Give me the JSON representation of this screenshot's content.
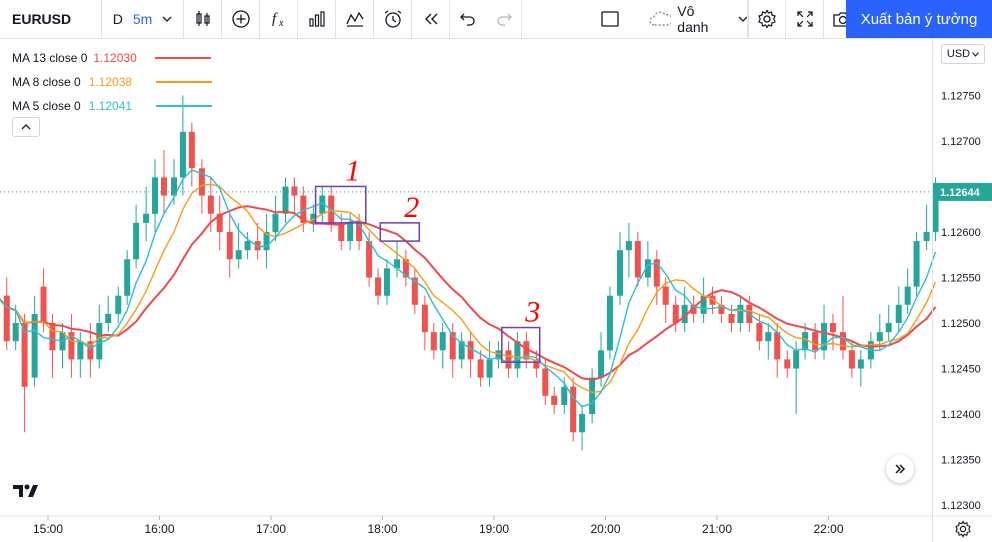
{
  "toolbar": {
    "symbol": "EURUSD",
    "interval_day": "D",
    "interval_min": "5m",
    "icons": [
      "chevron-down-icon",
      "candles-icon",
      "add-circle-icon",
      "fx-icon",
      "templates-icon",
      "indicators-icon",
      "alert-icon",
      "replay-icon",
      "undo-icon",
      "redo-icon"
    ],
    "layout_name": "Vô danh",
    "publish_label": "Xuất bản ý tưởng"
  },
  "legend": [
    {
      "name": "MA 13 close 0",
      "value": "1.12030",
      "color": "#f04b4b"
    },
    {
      "name": "MA 8 close 0",
      "value": "1.12038",
      "color": "#f59d1a"
    },
    {
      "name": "MA 5 close 0",
      "value": "1.12041",
      "color": "#2ebfd0"
    }
  ],
  "currency": "USD",
  "colors": {
    "up": "#26a69a",
    "down": "#ef5350",
    "ma13": "#f04b4b",
    "ma8": "#f59d1a",
    "ma5": "#2ebfd0",
    "annotation_box": "#6b3fb8",
    "annotation_text": "#ff0000",
    "price_tag": "#26a69a"
  },
  "current_price": "1.12644",
  "chart_data": {
    "type": "candlestick",
    "x_ticks": [
      "15:00",
      "16:00",
      "17:00",
      "18:00",
      "19:00",
      "20:00",
      "21:00",
      "22:00"
    ],
    "y_ticks": [
      "1.12800",
      "1.12750",
      "1.12700",
      "1.12650",
      "1.12600",
      "1.12550",
      "1.12500",
      "1.12450",
      "1.12400",
      "1.12350",
      "1.12300"
    ],
    "y_range": [
      1.12288,
      1.12812
    ],
    "candles": [
      [
        14.38,
        1.125,
        1.1255,
        1.1256,
        1.1249
      ],
      [
        14.46,
        1.1254,
        1.125,
        1.1255,
        1.1248
      ],
      [
        14.54,
        1.125,
        1.1254,
        1.1255,
        1.1249
      ],
      [
        14.63,
        1.1253,
        1.1248,
        1.1255,
        1.1247
      ],
      [
        14.71,
        1.1248,
        1.125,
        1.1252,
        1.1247
      ],
      [
        14.79,
        1.125,
        1.1243,
        1.1251,
        1.1238
      ],
      [
        14.88,
        1.1244,
        1.1251,
        1.1253,
        1.1243
      ],
      [
        14.96,
        1.1254,
        1.125,
        1.1256,
        1.1249
      ],
      [
        15.04,
        1.125,
        1.1247,
        1.1251,
        1.1244
      ],
      [
        15.13,
        1.1247,
        1.1249,
        1.125,
        1.1245
      ],
      [
        15.21,
        1.1249,
        1.1246,
        1.1251,
        1.1244
      ],
      [
        15.29,
        1.1246,
        1.1248,
        1.1249,
        1.1244
      ],
      [
        15.38,
        1.1248,
        1.1246,
        1.125,
        1.1244
      ],
      [
        15.46,
        1.1246,
        1.125,
        1.1252,
        1.1245
      ],
      [
        15.54,
        1.125,
        1.1251,
        1.1253,
        1.1249
      ],
      [
        15.63,
        1.1251,
        1.1253,
        1.1254,
        1.125
      ],
      [
        15.71,
        1.1253,
        1.1257,
        1.1258,
        1.1252
      ],
      [
        15.79,
        1.1257,
        1.1261,
        1.1263,
        1.1256
      ],
      [
        15.88,
        1.1261,
        1.1262,
        1.1265,
        1.1259
      ],
      [
        15.96,
        1.1262,
        1.1266,
        1.1268,
        1.126
      ],
      [
        16.04,
        1.1266,
        1.1264,
        1.1269,
        1.1262
      ],
      [
        16.13,
        1.1264,
        1.1266,
        1.1268,
        1.1263
      ],
      [
        16.21,
        1.1266,
        1.1271,
        1.1275,
        1.1264
      ],
      [
        16.29,
        1.1271,
        1.1267,
        1.1272,
        1.1265
      ],
      [
        16.38,
        1.1267,
        1.1264,
        1.1268,
        1.1262
      ],
      [
        16.46,
        1.1264,
        1.1262,
        1.1266,
        1.126
      ],
      [
        16.54,
        1.1262,
        1.126,
        1.1264,
        1.1258
      ],
      [
        16.63,
        1.126,
        1.1257,
        1.1262,
        1.1255
      ],
      [
        16.71,
        1.1257,
        1.1258,
        1.1261,
        1.1256
      ],
      [
        16.79,
        1.1258,
        1.1259,
        1.126,
        1.1257
      ],
      [
        16.88,
        1.1259,
        1.1258,
        1.1261,
        1.1257
      ],
      [
        16.96,
        1.1258,
        1.126,
        1.1262,
        1.1256
      ],
      [
        17.04,
        1.126,
        1.1262,
        1.1264,
        1.1259
      ],
      [
        17.13,
        1.1262,
        1.1265,
        1.1266,
        1.1261
      ],
      [
        17.21,
        1.1265,
        1.1264,
        1.1266,
        1.1262
      ],
      [
        17.29,
        1.1264,
        1.1261,
        1.1265,
        1.126
      ],
      [
        17.38,
        1.1261,
        1.1262,
        1.1263,
        1.126
      ],
      [
        17.46,
        1.1262,
        1.1264,
        1.1265,
        1.1261
      ],
      [
        17.54,
        1.1264,
        1.1261,
        1.1265,
        1.126
      ],
      [
        17.63,
        1.1261,
        1.1259,
        1.1262,
        1.1258
      ],
      [
        17.71,
        1.1259,
        1.1261,
        1.1262,
        1.1258
      ],
      [
        17.79,
        1.1261,
        1.1259,
        1.1262,
        1.1258
      ],
      [
        17.88,
        1.1259,
        1.1255,
        1.126,
        1.1254
      ],
      [
        17.96,
        1.1255,
        1.1253,
        1.1256,
        1.1252
      ],
      [
        18.04,
        1.1253,
        1.1256,
        1.1257,
        1.1252
      ],
      [
        18.13,
        1.1256,
        1.1257,
        1.1259,
        1.1255
      ],
      [
        18.21,
        1.1257,
        1.1255,
        1.1258,
        1.1254
      ],
      [
        18.29,
        1.1255,
        1.1252,
        1.1256,
        1.1251
      ],
      [
        18.38,
        1.1252,
        1.1249,
        1.1253,
        1.1247
      ],
      [
        18.46,
        1.1249,
        1.1247,
        1.125,
        1.1246
      ],
      [
        18.54,
        1.1247,
        1.1249,
        1.125,
        1.1245
      ],
      [
        18.63,
        1.1249,
        1.1246,
        1.125,
        1.1244
      ],
      [
        18.71,
        1.1246,
        1.1248,
        1.1249,
        1.1245
      ],
      [
        18.79,
        1.1248,
        1.1246,
        1.1249,
        1.1244
      ],
      [
        18.88,
        1.1246,
        1.1244,
        1.1247,
        1.1243
      ],
      [
        18.96,
        1.1244,
        1.1246,
        1.1248,
        1.1243
      ],
      [
        19.04,
        1.1246,
        1.1247,
        1.1248,
        1.1245
      ],
      [
        19.13,
        1.1247,
        1.1245,
        1.1248,
        1.1244
      ],
      [
        19.21,
        1.1245,
        1.1248,
        1.1249,
        1.1244
      ],
      [
        19.29,
        1.1248,
        1.1246,
        1.1249,
        1.1245
      ],
      [
        19.38,
        1.1246,
        1.1245,
        1.1247,
        1.1244
      ],
      [
        19.46,
        1.1245,
        1.1242,
        1.1246,
        1.1241
      ],
      [
        19.54,
        1.1242,
        1.1241,
        1.1243,
        1.124
      ],
      [
        19.63,
        1.1241,
        1.1243,
        1.1244,
        1.124
      ],
      [
        19.71,
        1.1243,
        1.1238,
        1.1244,
        1.1237
      ],
      [
        19.79,
        1.1238,
        1.124,
        1.1241,
        1.1236
      ],
      [
        19.88,
        1.124,
        1.1244,
        1.1245,
        1.1239
      ],
      [
        19.96,
        1.1244,
        1.1247,
        1.1249,
        1.1243
      ],
      [
        20.04,
        1.1247,
        1.1253,
        1.1254,
        1.1246
      ],
      [
        20.13,
        1.1253,
        1.1258,
        1.126,
        1.1252
      ],
      [
        20.21,
        1.1258,
        1.1259,
        1.1261,
        1.1255
      ],
      [
        20.29,
        1.1259,
        1.1255,
        1.126,
        1.1254
      ],
      [
        20.38,
        1.1255,
        1.1257,
        1.1259,
        1.1254
      ],
      [
        20.46,
        1.1257,
        1.1254,
        1.1258,
        1.1252
      ],
      [
        20.54,
        1.1254,
        1.1252,
        1.1255,
        1.125
      ],
      [
        20.63,
        1.1252,
        1.125,
        1.1253,
        1.1249
      ],
      [
        20.71,
        1.125,
        1.1252,
        1.1254,
        1.1249
      ],
      [
        20.79,
        1.1252,
        1.1251,
        1.1253,
        1.125
      ],
      [
        20.88,
        1.1251,
        1.1253,
        1.1255,
        1.125
      ],
      [
        20.96,
        1.1253,
        1.1252,
        1.1254,
        1.1251
      ],
      [
        21.04,
        1.1252,
        1.1251,
        1.1253,
        1.125
      ],
      [
        21.13,
        1.1251,
        1.125,
        1.1252,
        1.1249
      ],
      [
        21.21,
        1.125,
        1.1252,
        1.1253,
        1.1249
      ],
      [
        21.29,
        1.1252,
        1.125,
        1.1253,
        1.1249
      ],
      [
        21.38,
        1.125,
        1.1248,
        1.1251,
        1.1247
      ],
      [
        21.46,
        1.1248,
        1.1249,
        1.125,
        1.1246
      ],
      [
        21.54,
        1.1249,
        1.1246,
        1.125,
        1.1244
      ],
      [
        21.63,
        1.1246,
        1.1245,
        1.1247,
        1.1244
      ],
      [
        21.71,
        1.1245,
        1.1247,
        1.1248,
        1.124
      ],
      [
        21.79,
        1.1247,
        1.1249,
        1.125,
        1.1246
      ],
      [
        21.88,
        1.1249,
        1.1247,
        1.125,
        1.1246
      ],
      [
        21.96,
        1.1247,
        1.125,
        1.1252,
        1.1246
      ],
      [
        22.04,
        1.125,
        1.1249,
        1.1251,
        1.1247
      ],
      [
        22.13,
        1.1249,
        1.1247,
        1.1253,
        1.1246
      ],
      [
        22.21,
        1.1247,
        1.1245,
        1.1248,
        1.1244
      ],
      [
        22.29,
        1.1245,
        1.1246,
        1.1247,
        1.1243
      ],
      [
        22.38,
        1.1246,
        1.1248,
        1.1249,
        1.1245
      ],
      [
        22.46,
        1.1248,
        1.1249,
        1.1251,
        1.1247
      ],
      [
        22.54,
        1.1249,
        1.125,
        1.1252,
        1.1248
      ],
      [
        22.63,
        1.125,
        1.1252,
        1.1254,
        1.1249
      ],
      [
        22.71,
        1.1252,
        1.1254,
        1.1256,
        1.1251
      ],
      [
        22.79,
        1.1254,
        1.1259,
        1.126,
        1.1253
      ],
      [
        22.88,
        1.1259,
        1.126,
        1.1263,
        1.1258
      ],
      [
        22.96,
        1.126,
        1.1264,
        1.1266,
        1.1259
      ]
    ],
    "annotations": [
      {
        "label": "1",
        "x0": 17.4,
        "x1": 17.85,
        "y0": 1.1261,
        "y1": 1.1265
      },
      {
        "label": "2",
        "x0": 17.98,
        "x1": 18.33,
        "y0": 1.1259,
        "y1": 1.1261
      },
      {
        "label": "3",
        "x0": 19.07,
        "x1": 19.41,
        "y0": 1.12457,
        "y1": 1.12495
      }
    ]
  }
}
